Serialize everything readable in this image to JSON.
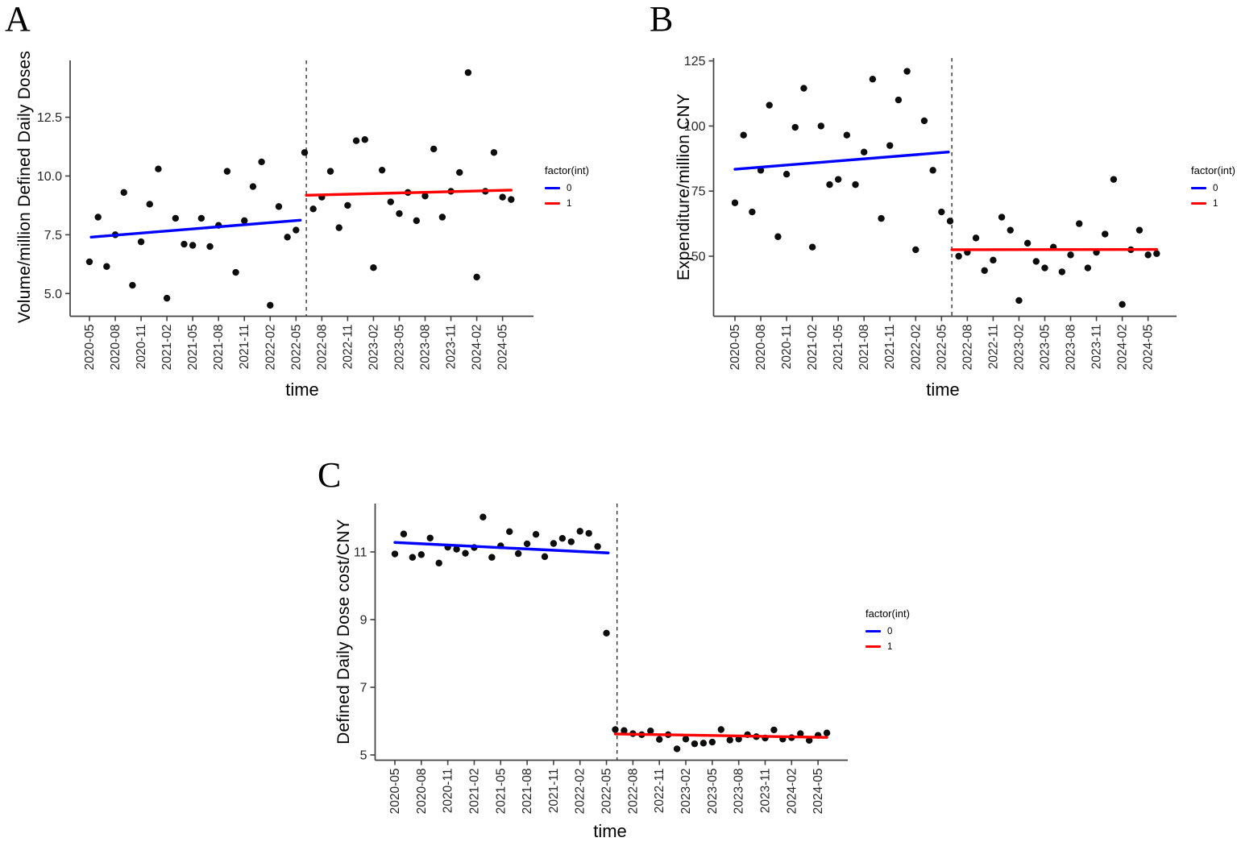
{
  "figure": {
    "background": "#ffffff",
    "axis_color": "#404040",
    "point_color": "#0d0d0d",
    "dashed_line_color": "#333333",
    "tick_label_color": "#262626"
  },
  "legend": {
    "title": "factor(int)",
    "items": [
      {
        "label": "0",
        "color": "#0000FF"
      },
      {
        "label": "1",
        "color": "#FF0000"
      }
    ]
  },
  "months": [
    "2020-05",
    "2020-06",
    "2020-07",
    "2020-08",
    "2020-09",
    "2020-10",
    "2020-11",
    "2020-12",
    "2021-01",
    "2021-02",
    "2021-03",
    "2021-04",
    "2021-05",
    "2021-06",
    "2021-07",
    "2021-08",
    "2021-09",
    "2021-10",
    "2021-11",
    "2021-12",
    "2022-01",
    "2022-02",
    "2022-03",
    "2022-04",
    "2022-05",
    "2022-06",
    "2022-07",
    "2022-08",
    "2022-09",
    "2022-10",
    "2022-11",
    "2022-12",
    "2023-01",
    "2023-02",
    "2023-03",
    "2023-04",
    "2023-05",
    "2023-06",
    "2023-07",
    "2023-08",
    "2023-09",
    "2023-10",
    "2023-11",
    "2023-12",
    "2024-01",
    "2024-02",
    "2024-03",
    "2024-04",
    "2024-05",
    "2024-06"
  ],
  "x_tick_labels": [
    "2020-05",
    "2020-08",
    "2020-11",
    "2021-02",
    "2021-05",
    "2021-08",
    "2021-11",
    "2022-02",
    "2022-05",
    "2022-08",
    "2022-11",
    "2023-02",
    "2023-05",
    "2023-08",
    "2023-11",
    "2024-02",
    "2024-05"
  ],
  "chart_data": [
    {
      "panel_label": "A",
      "type": "scatter",
      "ylabel": "Volume/million Defined Daily Doses",
      "xlabel": "time",
      "y_ticks": [
        "5.0",
        "7.5",
        "10.0",
        "12.5"
      ],
      "ylim": [
        4.1,
        14.9
      ],
      "intervention_x": "2022-06",
      "intervention_month_index": 25.2,
      "values": [
        6.35,
        8.25,
        6.15,
        7.5,
        9.3,
        5.35,
        7.2,
        8.8,
        10.3,
        4.8,
        8.2,
        7.1,
        7.05,
        8.2,
        7.0,
        7.9,
        10.2,
        5.9,
        8.1,
        9.55,
        10.6,
        4.5,
        8.7,
        7.4,
        7.7,
        11.0,
        8.6,
        9.1,
        10.2,
        7.8,
        8.75,
        11.5,
        11.55,
        6.1,
        10.25,
        8.9,
        8.4,
        9.3,
        8.1,
        9.15,
        11.15,
        8.25,
        9.35,
        10.15,
        14.4,
        5.7,
        9.35,
        11.0,
        9.1,
        9.0
      ],
      "trend_pre": {
        "legend_label": "0",
        "from": {
          "month_index": 0.2,
          "value": 7.4
        },
        "to": {
          "month_index": 24.5,
          "value": 8.12
        }
      },
      "trend_post": {
        "legend_label": "1",
        "from": {
          "month_index": 25.2,
          "value": 9.18
        },
        "to": {
          "month_index": 49,
          "value": 9.4
        }
      }
    },
    {
      "panel_label": "B",
      "type": "scatter",
      "ylabel": "Expenditure/million CNY",
      "xlabel": "time",
      "y_ticks": [
        "50",
        "75",
        "100",
        "125"
      ],
      "ylim": [
        27,
        126
      ],
      "intervention_x": "2022-06",
      "intervention_month_index": 25.2,
      "values": [
        70.5,
        96.5,
        67,
        83,
        108,
        57.5,
        81.5,
        99.5,
        114.5,
        53.5,
        100,
        77.5,
        79.5,
        96.5,
        77.5,
        90,
        118,
        64.5,
        92.5,
        110,
        121,
        52.5,
        102,
        83,
        67,
        63.5,
        50,
        51.5,
        57,
        44.5,
        48.5,
        65,
        60,
        33,
        55,
        48,
        45.5,
        53.5,
        44,
        50.5,
        62.5,
        45.5,
        51.5,
        58.5,
        79.5,
        31.5,
        52.5,
        60,
        50.5,
        51
      ],
      "trend_pre": {
        "legend_label": "0",
        "from": {
          "month_index": 0,
          "value": 83.4
        },
        "to": {
          "month_index": 24.8,
          "value": 90.0
        }
      },
      "trend_post": {
        "legend_label": "1",
        "from": {
          "month_index": 25.2,
          "value": 52.5
        },
        "to": {
          "month_index": 49,
          "value": 52.6
        }
      }
    },
    {
      "panel_label": "C",
      "type": "scatter",
      "ylabel": "Defined Daily Dose cost/CNY",
      "xlabel": "time",
      "y_ticks": [
        "5",
        "7",
        "9",
        "11"
      ],
      "ylim": [
        4.85,
        12.45
      ],
      "intervention_x": "2022-06",
      "intervention_month_index": 25.2,
      "values": [
        10.94,
        11.53,
        10.84,
        10.92,
        11.41,
        10.67,
        11.14,
        11.08,
        10.96,
        11.13,
        12.03,
        10.84,
        11.18,
        11.6,
        10.95,
        11.24,
        11.52,
        10.86,
        11.25,
        11.4,
        11.3,
        11.61,
        11.55,
        11.16,
        8.6,
        5.75,
        5.72,
        5.63,
        5.6,
        5.71,
        5.46,
        5.6,
        5.18,
        5.47,
        5.33,
        5.35,
        5.38,
        5.75,
        5.44,
        5.47,
        5.6,
        5.54,
        5.5,
        5.74,
        5.47,
        5.51,
        5.63,
        5.43,
        5.58,
        5.65
      ],
      "trend_pre": {
        "legend_label": "0",
        "from": {
          "month_index": 0,
          "value": 11.28
        },
        "to": {
          "month_index": 24.2,
          "value": 10.97
        }
      },
      "trend_post": {
        "legend_label": "1",
        "from": {
          "month_index": 25.0,
          "value": 5.62
        },
        "to": {
          "month_index": 49,
          "value": 5.52
        }
      }
    }
  ]
}
